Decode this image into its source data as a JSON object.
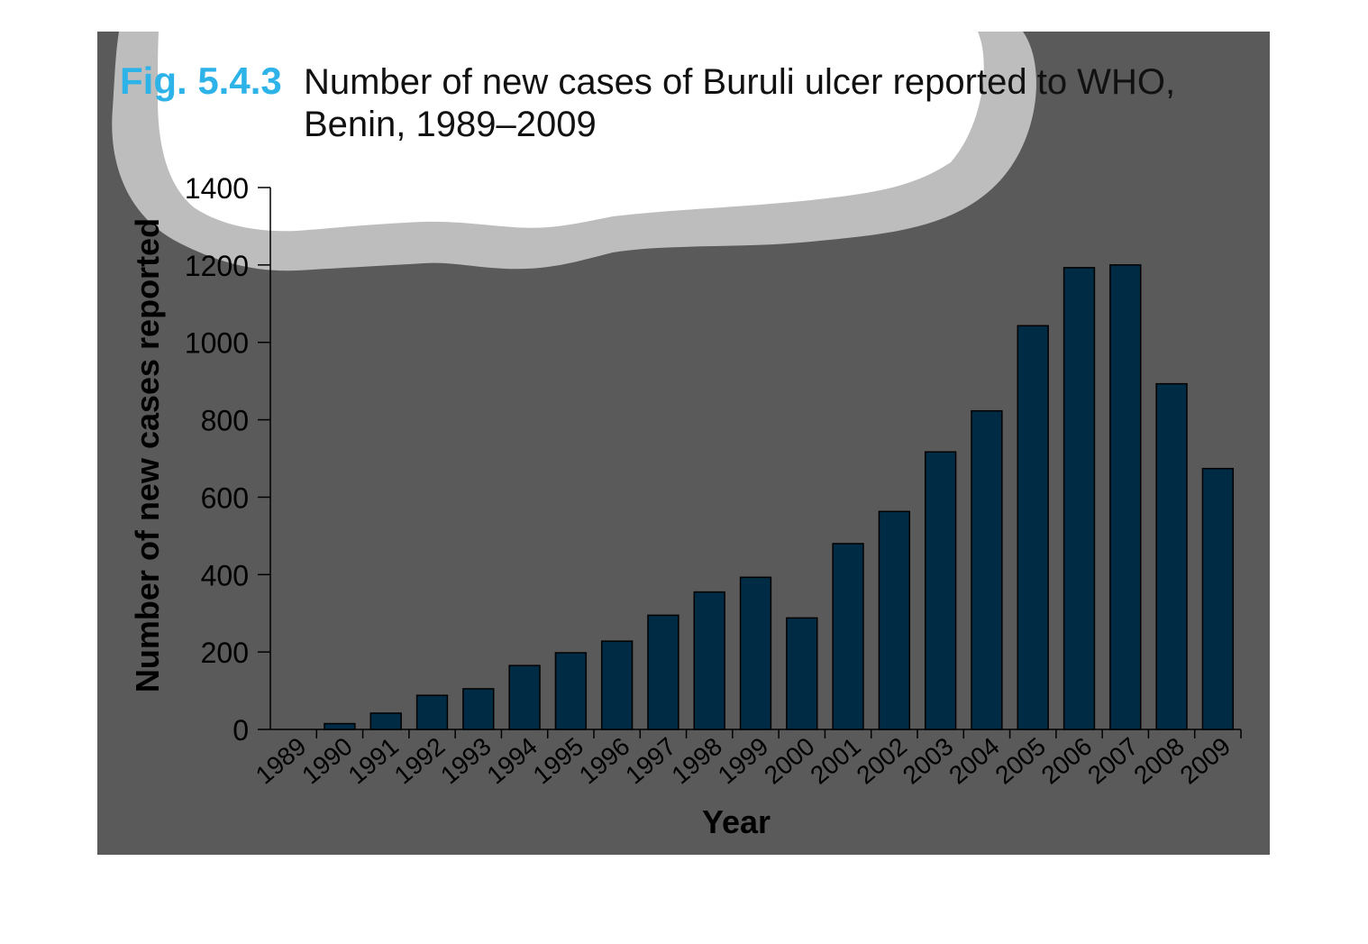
{
  "figure": {
    "label": "Fig. 5.4.3",
    "title_line1": "Number of new cases of Buruli ulcer reported to WHO,",
    "title_line2": "Benin, 1989–2009"
  },
  "colors": {
    "panel": "#5a5a5a",
    "bar": "#002b45",
    "label_blue": "#2db3e8",
    "title_text": "#111111",
    "cloud_fill": "#ffffff",
    "cloud_ring": "#bdbdbd"
  },
  "chart_data": {
    "type": "bar",
    "title": "Number of new cases of Buruli ulcer reported to WHO, Benin, 1989–2009",
    "xlabel": "Year",
    "ylabel": "Number of new cases reported",
    "ylim": [
      0,
      1400
    ],
    "yticks": [
      0,
      200,
      400,
      600,
      800,
      1000,
      1200,
      1400
    ],
    "categories": [
      "1989",
      "1990",
      "1991",
      "1992",
      "1993",
      "1994",
      "1995",
      "1996",
      "1997",
      "1998",
      "1999",
      "2000",
      "2001",
      "2002",
      "2003",
      "2004",
      "2005",
      "2006",
      "2007",
      "2008",
      "2009"
    ],
    "values": [
      0,
      15,
      42,
      88,
      105,
      165,
      198,
      228,
      295,
      355,
      393,
      288,
      480,
      563,
      717,
      823,
      1043,
      1193,
      1200,
      893,
      674
    ],
    "grid": false,
    "legend": "none"
  }
}
